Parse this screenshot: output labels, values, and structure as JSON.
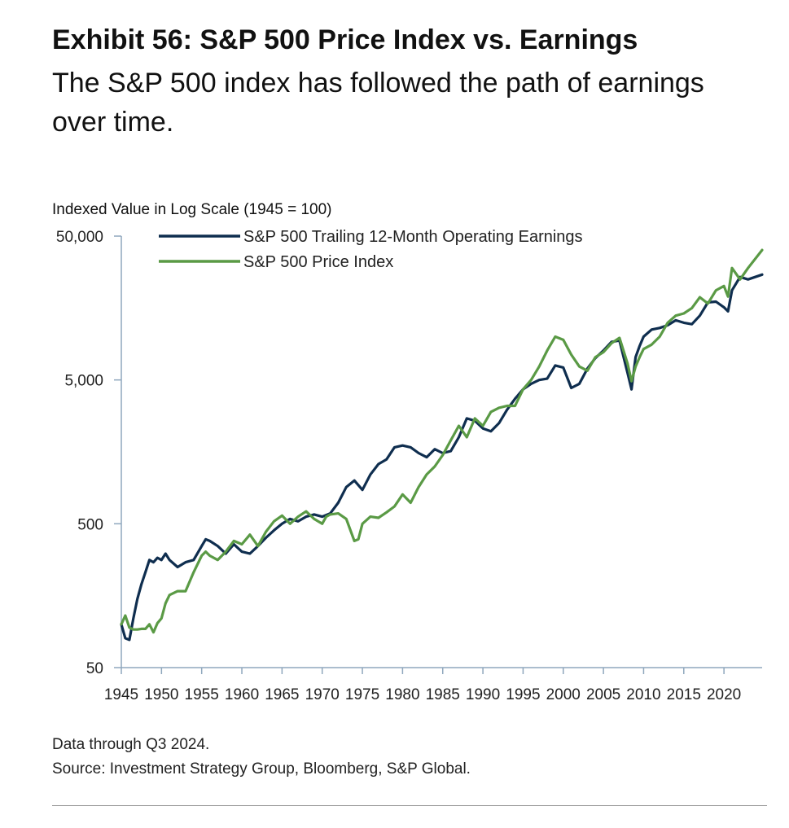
{
  "header": {
    "title": "Exhibit 56: S&P 500 Price Index vs. Earnings",
    "subtitle": "The S&P 500 index has followed the path of earnings over time."
  },
  "footer": {
    "data_note": "Data through Q3 2024.",
    "source": "Source: Investment Strategy Group, Bloomberg, S&P Global."
  },
  "colors": {
    "earnings": "#0f2e4f",
    "price": "#5a9a45",
    "axis": "#8fa7bd"
  },
  "chart_data": {
    "type": "line",
    "ylabel": "Indexed Value in Log Scale (1945 = 100)",
    "xlabel": "",
    "y_scale": "log",
    "ylim": [
      50,
      50000
    ],
    "xlim": [
      1945,
      2024.75
    ],
    "y_ticks": [
      50,
      500,
      5000,
      50000
    ],
    "y_tick_labels": [
      "50",
      "500",
      "5,000",
      "50,000"
    ],
    "x_ticks": [
      1945,
      1950,
      1955,
      1960,
      1965,
      1970,
      1975,
      1980,
      1985,
      1990,
      1995,
      2000,
      2005,
      2010,
      2015,
      2020
    ],
    "grid": false,
    "legend_position": "top-left",
    "series": [
      {
        "name": "S&P 500 Trailing 12-Month Operating Earnings",
        "color_key": "earnings",
        "x": [
          1945,
          1945.5,
          1946,
          1946.5,
          1947,
          1947.5,
          1948,
          1948.5,
          1949,
          1949.5,
          1950,
          1950.5,
          1951,
          1952,
          1953,
          1954,
          1955,
          1955.5,
          1956,
          1957,
          1958,
          1959,
          1960,
          1961,
          1962,
          1963,
          1964,
          1965,
          1966,
          1967,
          1968,
          1969,
          1970,
          1971,
          1972,
          1973,
          1974,
          1975,
          1976,
          1977,
          1978,
          1979,
          1980,
          1981,
          1982,
          1983,
          1984,
          1985,
          1986,
          1987,
          1988,
          1989,
          1990,
          1991,
          1992,
          1993,
          1994,
          1995,
          1996,
          1997,
          1998,
          1999,
          2000,
          2001,
          2002,
          2003,
          2004,
          2005,
          2006,
          2007,
          2008,
          2008.5,
          2009,
          2009.5,
          2010,
          2011,
          2012,
          2013,
          2014,
          2015,
          2016,
          2017,
          2018,
          2019,
          2020,
          2020.5,
          2021,
          2022,
          2023,
          2024.75
        ],
        "y": [
          100,
          80,
          78,
          110,
          150,
          190,
          230,
          280,
          270,
          290,
          280,
          310,
          280,
          250,
          270,
          280,
          350,
          390,
          380,
          350,
          310,
          360,
          320,
          310,
          350,
          400,
          450,
          500,
          540,
          520,
          560,
          580,
          560,
          590,
          700,
          900,
          1000,
          860,
          1100,
          1300,
          1400,
          1700,
          1750,
          1700,
          1550,
          1450,
          1650,
          1550,
          1600,
          2000,
          2700,
          2600,
          2300,
          2200,
          2500,
          3100,
          3700,
          4300,
          4700,
          5000,
          5100,
          6300,
          6100,
          4400,
          4700,
          6000,
          7100,
          8000,
          9200,
          9400,
          5600,
          4300,
          7200,
          8600,
          10000,
          11200,
          11500,
          12000,
          13000,
          12500,
          12200,
          14000,
          17300,
          17500,
          16000,
          15000,
          21000,
          26000,
          25000,
          27000
        ]
      },
      {
        "name": "S&P 500 Price Index",
        "color_key": "price",
        "x": [
          1945,
          1945.5,
          1946,
          1946.5,
          1947,
          1947.5,
          1948,
          1948.5,
          1949,
          1949.5,
          1950,
          1950.5,
          1951,
          1952,
          1953,
          1954,
          1955,
          1955.5,
          1956,
          1957,
          1958,
          1959,
          1960,
          1961,
          1962,
          1963,
          1964,
          1965,
          1966,
          1967,
          1968,
          1969,
          1970,
          1970.5,
          1971,
          1972,
          1973,
          1974,
          1974.5,
          1975,
          1976,
          1977,
          1978,
          1979,
          1980,
          1981,
          1982,
          1983,
          1984,
          1985,
          1986,
          1987,
          1988,
          1989,
          1990,
          1991,
          1992,
          1993,
          1994,
          1995,
          1996,
          1997,
          1998,
          1999,
          2000,
          2001,
          2002,
          2003,
          2004,
          2005,
          2006,
          2007,
          2008,
          2008.5,
          2009,
          2009.5,
          2010,
          2011,
          2012,
          2013,
          2014,
          2015,
          2016,
          2017,
          2018,
          2019,
          2020,
          2020.5,
          2021,
          2022,
          2023,
          2024.75
        ],
        "y": [
          100,
          115,
          95,
          92,
          92,
          93,
          93,
          100,
          88,
          102,
          110,
          140,
          160,
          170,
          170,
          230,
          300,
          320,
          300,
          280,
          320,
          380,
          360,
          420,
          350,
          440,
          520,
          570,
          500,
          560,
          610,
          540,
          500,
          560,
          580,
          590,
          540,
          380,
          390,
          500,
          560,
          550,
          600,
          660,
          800,
          700,
          900,
          1100,
          1250,
          1500,
          1900,
          2400,
          2000,
          2700,
          2400,
          3000,
          3200,
          3300,
          3300,
          4300,
          5000,
          6200,
          8000,
          10000,
          9500,
          7500,
          6200,
          5800,
          7200,
          7800,
          9000,
          9800,
          6500,
          4900,
          6200,
          7200,
          8200,
          8800,
          10000,
          12500,
          14000,
          14500,
          15800,
          18800,
          17000,
          21000,
          22500,
          19000,
          30000,
          25000,
          30000,
          40000
        ]
      }
    ]
  }
}
